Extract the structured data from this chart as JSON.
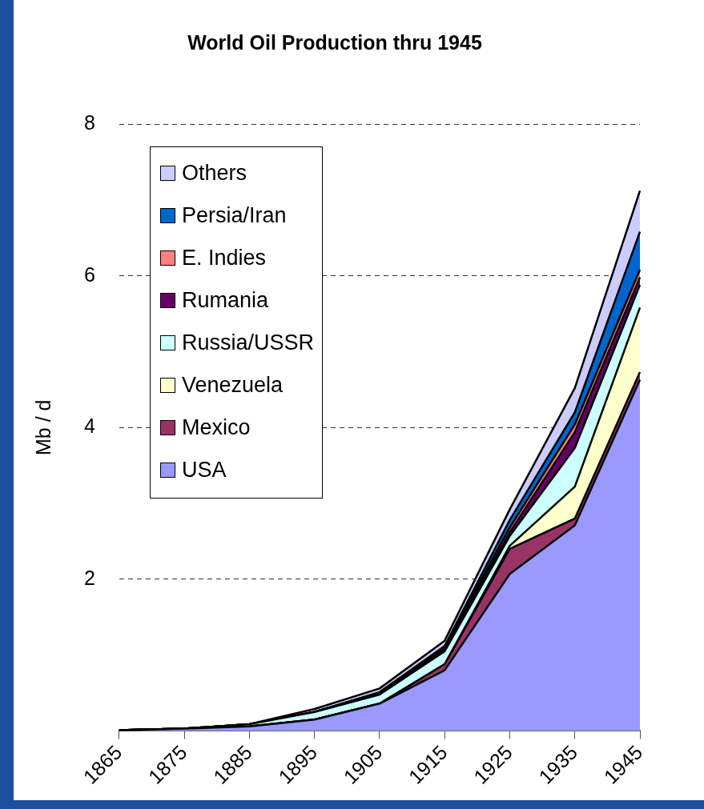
{
  "chart_data": {
    "type": "area",
    "title": "World Oil Production thru 1945",
    "ylabel": "Mb / d",
    "categories": [
      "1865",
      "1875",
      "1885",
      "1895",
      "1905",
      "1915",
      "1925",
      "1935",
      "1945"
    ],
    "stacked": true,
    "series": [
      {
        "name": "USA",
        "color": "#9999ff",
        "values": [
          0.01,
          0.03,
          0.06,
          0.15,
          0.36,
          0.8,
          2.07,
          2.71,
          4.63
        ]
      },
      {
        "name": "Mexico",
        "color": "#993366",
        "values": [
          0,
          0,
          0,
          0,
          0,
          0.08,
          0.33,
          0.09,
          0.1
        ]
      },
      {
        "name": "Venezuela",
        "color": "#ffffcc",
        "values": [
          0,
          0,
          0,
          0,
          0,
          0,
          0.04,
          0.42,
          0.85
        ]
      },
      {
        "name": "Russia/USSR",
        "color": "#ccffff",
        "values": [
          0,
          0,
          0.03,
          0.1,
          0.12,
          0.17,
          0.13,
          0.51,
          0.3
        ]
      },
      {
        "name": "Rumania",
        "color": "#660066",
        "values": [
          0,
          0,
          0,
          0,
          0.01,
          0.03,
          0.05,
          0.21,
          0.1
        ]
      },
      {
        "name": "E. Indies",
        "color": "#ff8080",
        "values": [
          0,
          0,
          0,
          0,
          0.02,
          0.03,
          0.06,
          0.1,
          0.1
        ]
      },
      {
        "name": "Persia/Iran",
        "color": "#0066cc",
        "values": [
          0,
          0,
          0,
          0,
          0,
          0.01,
          0.1,
          0.16,
          0.5
        ]
      },
      {
        "name": "Others",
        "color": "#ccccff",
        "values": [
          0,
          0,
          0,
          0.04,
          0.05,
          0.07,
          0.14,
          0.32,
          0.54
        ]
      }
    ],
    "ylim": [
      0,
      8
    ],
    "yticks": [
      2,
      4,
      6,
      8
    ],
    "grid": "y",
    "legend": "top left"
  }
}
